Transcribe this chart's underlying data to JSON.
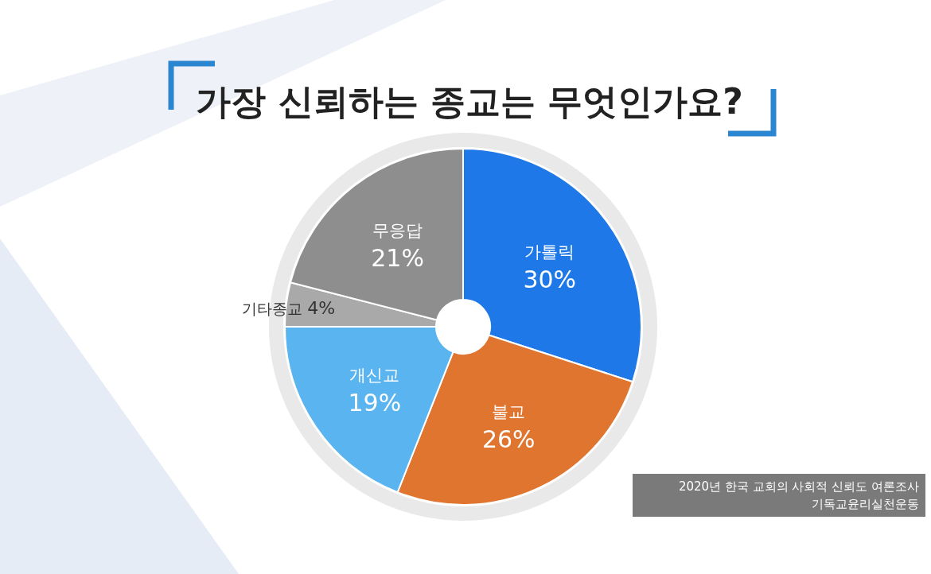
{
  "chart_data": {
    "type": "donut",
    "title": "가장 신뢰하는 종교는 무엇인가요?",
    "categories": [
      "가톨릭",
      "불교",
      "개신교",
      "기타종교",
      "무응답"
    ],
    "values": [
      30,
      26,
      19,
      4,
      21
    ],
    "value_labels": [
      "30%",
      "26%",
      "19%",
      "4%",
      "21%"
    ],
    "colors": [
      "#1f78e8",
      "#e07530",
      "#5ab4f0",
      "#a9a9a9",
      "#8e8e8e"
    ],
    "annotations": [
      "2020년 한국 교회의 사회적 신뢰도 여론조사",
      "기독교윤리실천운동"
    ]
  }
}
